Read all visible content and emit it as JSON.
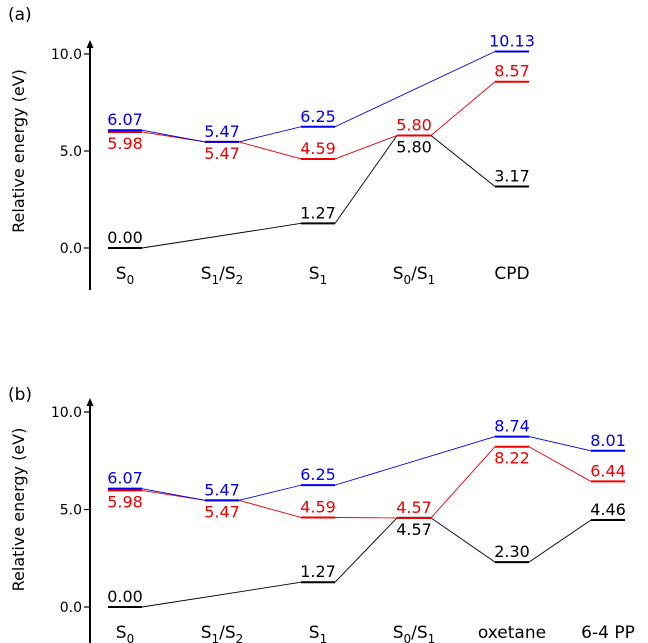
{
  "chart_data": [
    {
      "type": "energy-level-diagram",
      "panel_label": "(a)",
      "ylabel": "Relative energy (eV)",
      "ylim": [
        -2.0,
        10.5
      ],
      "yticks": [
        0.0,
        5.0,
        10.0
      ],
      "ytick_labels": [
        "0.0",
        "5.0",
        "10.0"
      ],
      "categories": [
        "S0",
        "S1/S2",
        "S1",
        "S0/S1",
        "CPD"
      ],
      "category_labels": [
        {
          "base": "S",
          "sub": "0"
        },
        {
          "base": "S",
          "sub": "1",
          "mid": "/S",
          "sub2": "2"
        },
        {
          "base": "S",
          "sub": "1"
        },
        {
          "base": "S",
          "sub": "0",
          "mid": "/S",
          "sub2": "1"
        },
        {
          "base": "CPD"
        }
      ],
      "series": [
        {
          "color": "#0000ee",
          "values": [
            6.07,
            5.47,
            6.25,
            null,
            10.13
          ],
          "labels": [
            "6.07",
            "5.47",
            "6.25",
            null,
            "10.13"
          ]
        },
        {
          "color": "#ee0000",
          "values": [
            5.98,
            5.47,
            4.59,
            5.8,
            8.57
          ],
          "labels": [
            "5.98",
            "5.47",
            "4.59",
            "5.80",
            "8.57"
          ]
        },
        {
          "color": "#000000",
          "values": [
            0.0,
            null,
            1.27,
            5.8,
            3.17
          ],
          "labels": [
            "0.00",
            null,
            "1.27",
            "5.80",
            "3.17"
          ]
        }
      ]
    },
    {
      "type": "energy-level-diagram",
      "panel_label": "(b)",
      "ylabel": "Relative energy (eV)",
      "ylim": [
        -2.0,
        10.5
      ],
      "yticks": [
        0.0,
        5.0,
        10.0
      ],
      "ytick_labels": [
        "0.0",
        "5.0",
        "10.0"
      ],
      "categories": [
        "S0",
        "S1/S2",
        "S1",
        "S0/S1",
        "oxetane",
        "6-4 PP"
      ],
      "category_labels": [
        {
          "base": "S",
          "sub": "0"
        },
        {
          "base": "S",
          "sub": "1",
          "mid": "/S",
          "sub2": "2"
        },
        {
          "base": "S",
          "sub": "1"
        },
        {
          "base": "S",
          "sub": "0",
          "mid": "/S",
          "sub2": "1"
        },
        {
          "base": "oxetane"
        },
        {
          "base": "6-4 PP"
        }
      ],
      "series": [
        {
          "color": "#0000ee",
          "values": [
            6.07,
            5.47,
            6.25,
            null,
            8.74,
            8.01
          ],
          "labels": [
            "6.07",
            "5.47",
            "6.25",
            null,
            "8.74",
            "8.01"
          ]
        },
        {
          "color": "#ee0000",
          "values": [
            5.98,
            5.47,
            4.59,
            4.57,
            8.22,
            6.44
          ],
          "labels": [
            "5.98",
            "5.47",
            "4.59",
            "4.57",
            "8.22",
            "6.44"
          ]
        },
        {
          "color": "#000000",
          "values": [
            0.0,
            null,
            1.27,
            4.57,
            2.3,
            4.46
          ],
          "labels": [
            "0.00",
            null,
            "1.27",
            "4.57",
            "2.30",
            "4.46"
          ]
        }
      ]
    }
  ]
}
